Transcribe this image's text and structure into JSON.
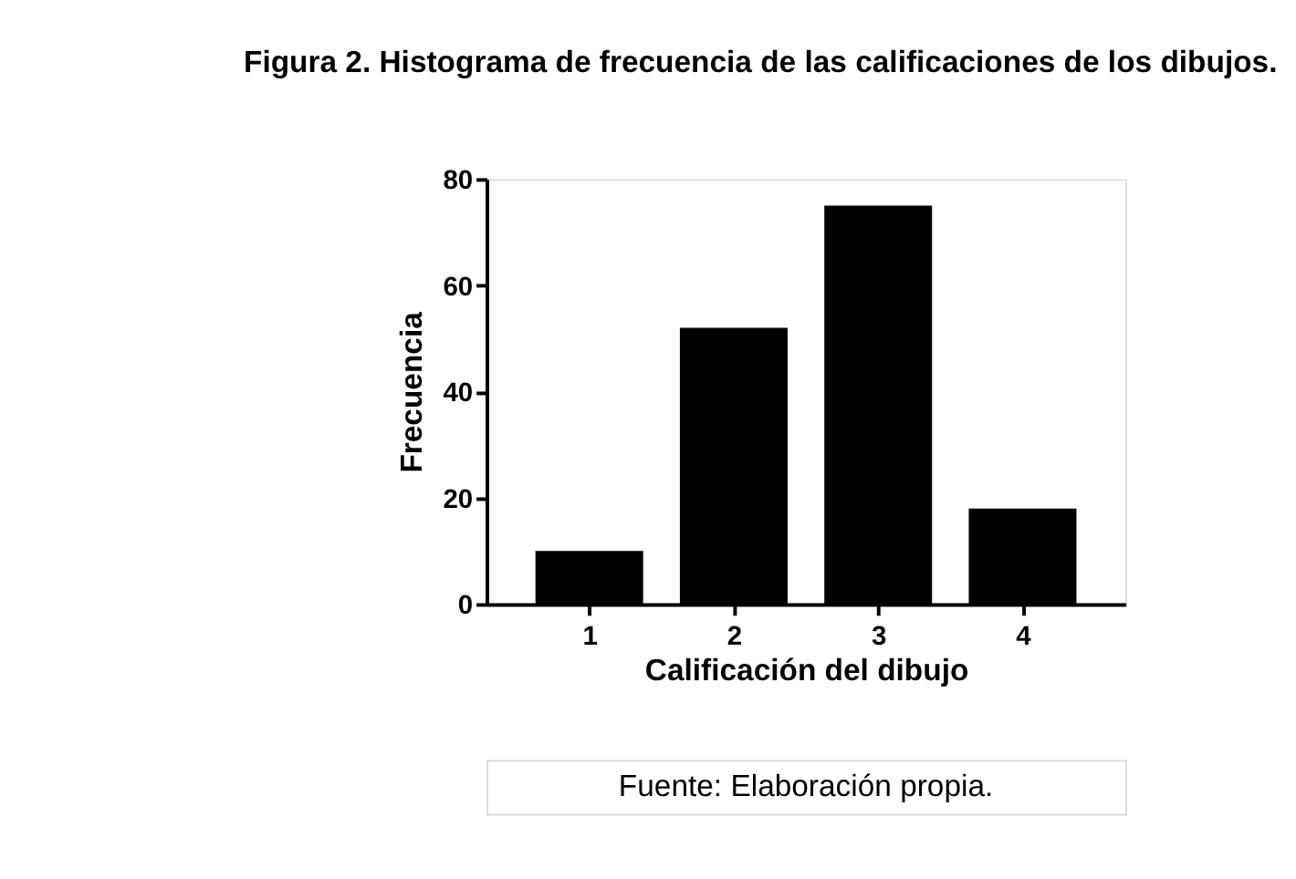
{
  "chart_data": {
    "type": "bar",
    "title": "Figura 2. Histograma de frecuencia de las calificaciones de los dibujos.",
    "xlabel": "Calificación del dibujo",
    "ylabel": "Frecuencia",
    "categories": [
      "1",
      "2",
      "3",
      "4"
    ],
    "values": [
      10,
      52,
      75,
      18
    ],
    "color": "#000000",
    "ylim": [
      0,
      80
    ],
    "yticks": [
      0,
      20,
      40,
      60,
      80
    ],
    "grid": false,
    "annotations": [
      "Fuente: Elaboración propia."
    ]
  }
}
